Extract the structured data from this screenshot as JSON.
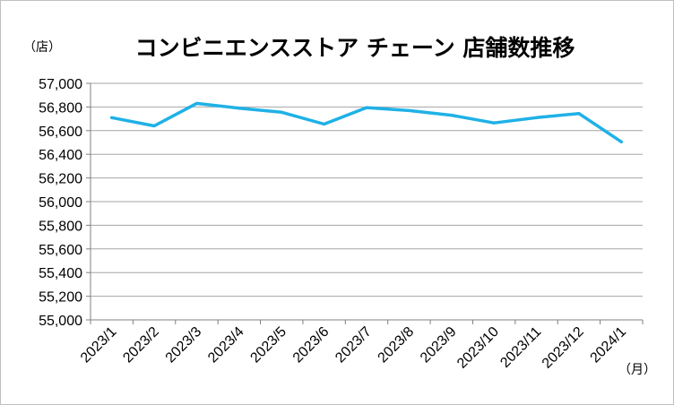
{
  "chart_data": {
    "type": "line",
    "title": "コンビニエンスストア チェーン 店舗数推移",
    "ylabel": "（店）",
    "xlabel": "（月）",
    "ylim": [
      55000,
      57000
    ],
    "ystep": 200,
    "ytick_labels": [
      "55,000",
      "55,200",
      "55,400",
      "55,600",
      "55,800",
      "56,000",
      "56,200",
      "56,400",
      "56,600",
      "56,800",
      "57,000"
    ],
    "categories": [
      "2023/1",
      "2023/2",
      "2023/3",
      "2023/4",
      "2023/5",
      "2023/6",
      "2023/7",
      "2023/8",
      "2023/9",
      "2023/10",
      "2023/11",
      "2023/12",
      "2024/1"
    ],
    "series": [
      {
        "name": "店舗数",
        "color": "#1fb1e6",
        "values": [
          56710,
          56640,
          56830,
          56790,
          56755,
          56655,
          56795,
          56770,
          56730,
          56665,
          56710,
          56745,
          56505
        ]
      }
    ],
    "grid": true,
    "legend": "none"
  }
}
